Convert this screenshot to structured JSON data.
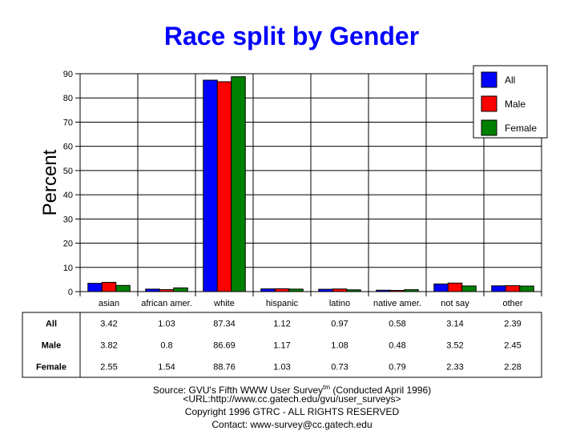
{
  "chart_data": {
    "type": "bar",
    "title": "Race split by Gender",
    "ylabel": "Percent",
    "ylim": [
      0,
      90
    ],
    "yticks": [
      0,
      10,
      20,
      30,
      40,
      50,
      60,
      70,
      80,
      90
    ],
    "categories": [
      "asian",
      "african amer.",
      "white",
      "hispanic",
      "latino",
      "native amer.",
      "not say",
      "other"
    ],
    "series": [
      {
        "name": "All",
        "color": "#0000ff",
        "values": [
          3.42,
          1.03,
          87.34,
          1.12,
          0.97,
          0.58,
          3.14,
          2.39
        ]
      },
      {
        "name": "Male",
        "color": "#ff0000",
        "values": [
          3.82,
          0.8,
          86.69,
          1.17,
          1.08,
          0.48,
          3.52,
          2.45
        ]
      },
      {
        "name": "Female",
        "color": "#008000",
        "values": [
          2.55,
          1.54,
          88.76,
          1.03,
          0.73,
          0.79,
          2.33,
          2.28
        ]
      }
    ],
    "legend_position": "top-right",
    "grid": true,
    "table_rows": [
      {
        "label": "All",
        "cells": [
          "3.42",
          "1.03",
          "87.34",
          "1.12",
          "0.97",
          "0.58",
          "3.14",
          "2.39"
        ]
      },
      {
        "label": "Male",
        "cells": [
          "3.82",
          "0.8",
          "86.69",
          "1.17",
          "1.08",
          "0.48",
          "3.52",
          "2.45"
        ]
      },
      {
        "label": "Female",
        "cells": [
          "2.55",
          "1.54",
          "88.76",
          "1.03",
          "0.73",
          "0.79",
          "2.33",
          "2.28"
        ]
      }
    ]
  },
  "footer": {
    "source_prefix": "Source: GVU's Fifth WWW User Survey",
    "source_sup": "tm",
    "source_suffix": " (Conducted April 1996)",
    "url": "<URL:http://www.cc.gatech.edu/gvu/user_surveys>",
    "copyright": "Copyright 1996 GTRC - ALL RIGHTS RESERVED",
    "contact": "Contact: www-survey@cc.gatech.edu"
  }
}
